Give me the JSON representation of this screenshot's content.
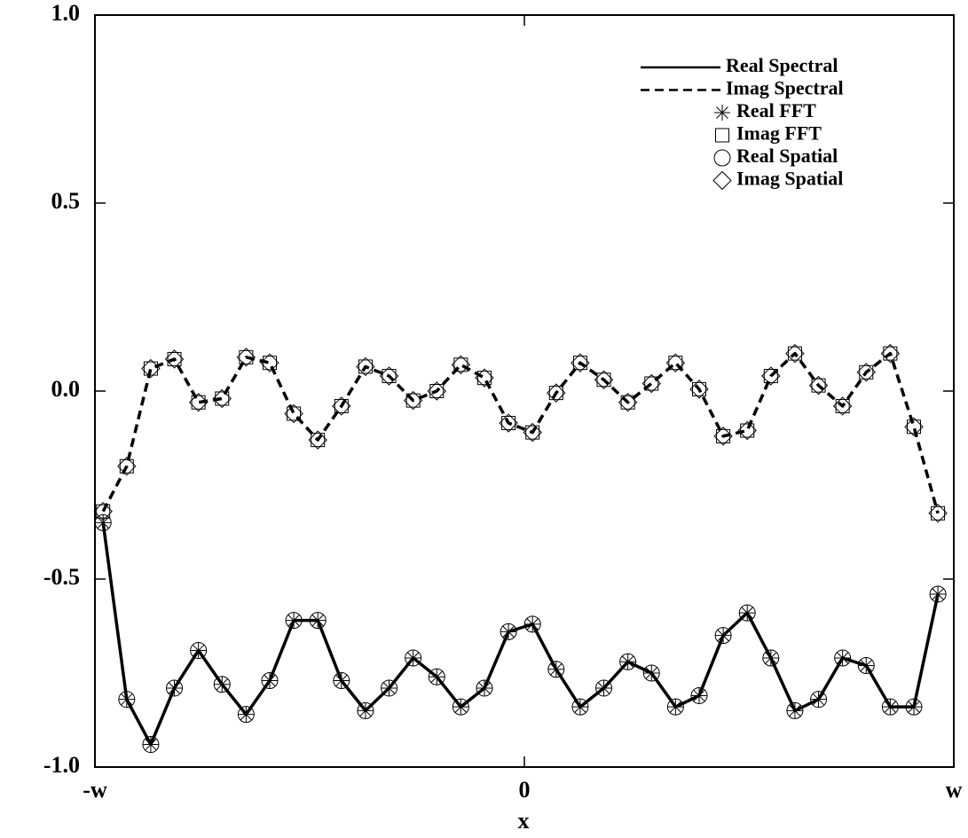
{
  "chart_data": {
    "type": "line",
    "x_label": "x",
    "x": [
      -0.981,
      -0.926,
      -0.87,
      -0.815,
      -0.759,
      -0.704,
      -0.648,
      -0.593,
      -0.537,
      -0.481,
      -0.426,
      -0.37,
      -0.315,
      -0.259,
      -0.204,
      -0.148,
      -0.093,
      -0.037,
      0.019,
      0.074,
      0.13,
      0.185,
      0.241,
      0.296,
      0.352,
      0.407,
      0.463,
      0.519,
      0.574,
      0.63,
      0.685,
      0.741,
      0.796,
      0.852,
      0.907,
      0.963
    ],
    "series": [
      {
        "name": "Real Spectral",
        "color": "#000000",
        "style": "solid",
        "values": [
          -0.35,
          -0.82,
          -0.94,
          -0.79,
          -0.69,
          -0.78,
          -0.86,
          -0.77,
          -0.61,
          -0.61,
          -0.77,
          -0.85,
          -0.79,
          -0.71,
          -0.76,
          -0.84,
          -0.79,
          -0.64,
          -0.62,
          -0.74,
          -0.84,
          -0.79,
          -0.72,
          -0.75,
          -0.84,
          -0.81,
          -0.65,
          -0.59,
          -0.71,
          -0.85,
          -0.82,
          -0.71,
          -0.73,
          -0.84,
          -0.84,
          -0.54
        ]
      },
      {
        "name": "Imag Spectral",
        "color": "#000000",
        "style": "dashed",
        "values": [
          -0.32,
          -0.2,
          0.06,
          0.085,
          -0.03,
          -0.02,
          0.09,
          0.075,
          -0.06,
          -0.13,
          -0.04,
          0.065,
          0.04,
          -0.025,
          0.0,
          0.07,
          0.035,
          -0.085,
          -0.11,
          -0.005,
          0.075,
          0.03,
          -0.03,
          0.02,
          0.075,
          0.005,
          -0.12,
          -0.105,
          0.04,
          0.1,
          0.015,
          -0.04,
          0.05,
          0.1,
          -0.095,
          -0.325
        ]
      },
      {
        "name": "Real FFT",
        "color": "#000000",
        "style": "star",
        "values": [
          -0.35,
          -0.82,
          -0.94,
          -0.79,
          -0.69,
          -0.78,
          -0.86,
          -0.77,
          -0.61,
          -0.61,
          -0.77,
          -0.85,
          -0.79,
          -0.71,
          -0.76,
          -0.84,
          -0.79,
          -0.64,
          -0.62,
          -0.74,
          -0.84,
          -0.79,
          -0.72,
          -0.75,
          -0.84,
          -0.81,
          -0.65,
          -0.59,
          -0.71,
          -0.85,
          -0.82,
          -0.71,
          -0.73,
          -0.84,
          -0.84,
          -0.54
        ]
      },
      {
        "name": "Imag FFT",
        "color": "#000000",
        "style": "square",
        "values": [
          -0.32,
          -0.2,
          0.06,
          0.085,
          -0.03,
          -0.02,
          0.09,
          0.075,
          -0.06,
          -0.13,
          -0.04,
          0.065,
          0.04,
          -0.025,
          0.0,
          0.07,
          0.035,
          -0.085,
          -0.11,
          -0.005,
          0.075,
          0.03,
          -0.03,
          0.02,
          0.075,
          0.005,
          -0.12,
          -0.105,
          0.04,
          0.1,
          0.015,
          -0.04,
          0.05,
          0.1,
          -0.095,
          -0.325
        ]
      },
      {
        "name": "Real Spatial",
        "color": "#000000",
        "style": "circle",
        "values": [
          -0.35,
          -0.82,
          -0.94,
          -0.79,
          -0.69,
          -0.78,
          -0.86,
          -0.77,
          -0.61,
          -0.61,
          -0.77,
          -0.85,
          -0.79,
          -0.71,
          -0.76,
          -0.84,
          -0.79,
          -0.64,
          -0.62,
          -0.74,
          -0.84,
          -0.79,
          -0.72,
          -0.75,
          -0.84,
          -0.81,
          -0.65,
          -0.59,
          -0.71,
          -0.85,
          -0.82,
          -0.71,
          -0.73,
          -0.84,
          -0.84,
          -0.54
        ]
      },
      {
        "name": "Imag Spatial",
        "color": "#000000",
        "style": "diamond",
        "values": [
          -0.32,
          -0.2,
          0.06,
          0.085,
          -0.03,
          -0.02,
          0.09,
          0.075,
          -0.06,
          -0.13,
          -0.04,
          0.065,
          0.04,
          -0.025,
          0.0,
          0.07,
          0.035,
          -0.085,
          -0.11,
          -0.005,
          0.075,
          0.03,
          -0.03,
          0.02,
          0.075,
          0.005,
          -0.12,
          -0.105,
          0.04,
          0.1,
          0.015,
          -0.04,
          0.05,
          0.1,
          -0.095,
          -0.325
        ]
      }
    ],
    "xlim": [
      -1,
      1
    ],
    "xticks": [
      {
        "value": -1,
        "label": "-w"
      },
      0,
      {
        "value": 1,
        "label": "w"
      }
    ],
    "ylim": [
      -1,
      1
    ],
    "yticks": [
      {
        "value": -1,
        "label": "-1.0"
      },
      {
        "value": -0.5,
        "label": "-0.5"
      },
      {
        "value": 0,
        "label": "0.0"
      },
      {
        "value": 0.5,
        "label": "0.5"
      },
      {
        "value": 1,
        "label": "1.0"
      }
    ],
    "legend": "upper right",
    "grid": false
  }
}
